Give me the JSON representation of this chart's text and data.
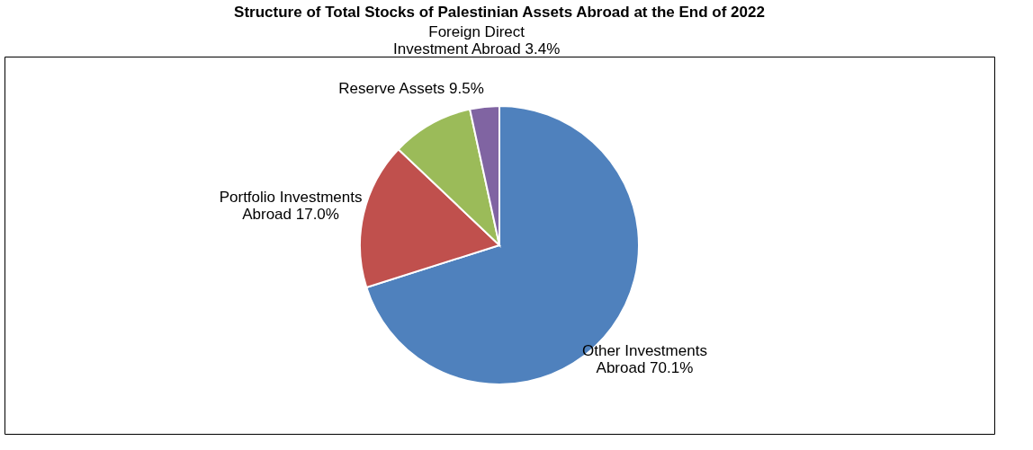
{
  "chart_data": {
    "type": "pie",
    "title": "Structure of Total Stocks of Palestinian Assets Abroad at the End of 2022",
    "categories": [
      "Other Investments Abroad",
      "Portfolio Investments Abroad",
      "Reserve Assets",
      "Foreign Direct Investment Abroad"
    ],
    "values": [
      70.1,
      17.0,
      9.5,
      3.4
    ],
    "value_labels": [
      "70.1%",
      "17.0%",
      "9.5%",
      "3.4%"
    ],
    "colors": [
      "#4f81bd",
      "#c0504d",
      "#9bbb59",
      "#8064a2"
    ],
    "legend": false
  }
}
